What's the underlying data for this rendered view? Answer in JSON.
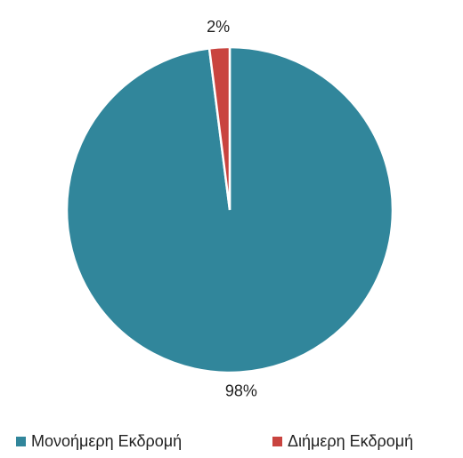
{
  "chart_data": {
    "type": "pie",
    "categories": [
      "Μονοήμερη Εκδρομή",
      "Διήμερη Εκδρομή"
    ],
    "values": [
      98,
      2
    ],
    "value_labels": [
      "98%",
      "2%"
    ],
    "colors": [
      "#31869b",
      "#c9443f"
    ],
    "legend": "bottom"
  }
}
